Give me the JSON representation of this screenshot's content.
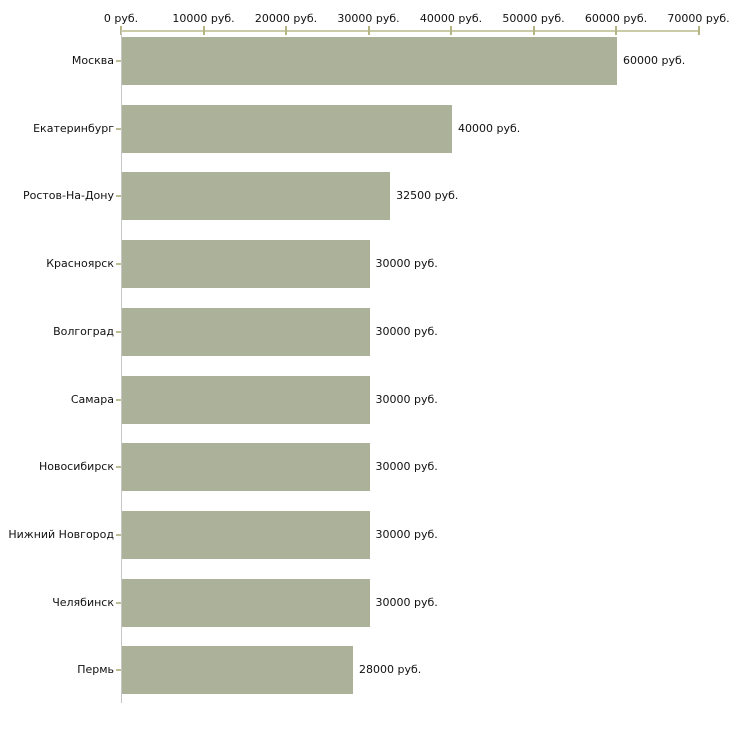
{
  "chart_data": {
    "type": "bar",
    "orientation": "horizontal",
    "title": "",
    "xlabel": "",
    "ylabel": "",
    "xlim": [
      0,
      70000
    ],
    "grid": false,
    "legend": false,
    "x_tick_values": [
      0,
      10000,
      20000,
      30000,
      40000,
      50000,
      60000,
      70000
    ],
    "x_tick_labels": [
      "0 руб.",
      "10000 руб.",
      "20000 руб.",
      "30000 руб.",
      "40000 руб.",
      "50000 руб.",
      "60000 руб.",
      "70000 руб."
    ],
    "categories": [
      "Москва",
      "Екатеринбург",
      "Ростов-На-Дону",
      "Красноярск",
      "Волгоград",
      "Самара",
      "Новосибирск",
      "Нижний Новгород",
      "Челябинск",
      "Пермь"
    ],
    "values": [
      60000,
      40000,
      32500,
      30000,
      30000,
      30000,
      30000,
      30000,
      30000,
      28000
    ],
    "value_labels": [
      "60000 руб.",
      "40000 руб.",
      "32500 руб.",
      "30000 руб.",
      "30000 руб.",
      "30000 руб.",
      "30000 руб.",
      "30000 руб.",
      "30000 руб.",
      "28000 руб."
    ],
    "colors": {
      "bar_fill": "#acb29a",
      "axis_line": "#cbcba8",
      "axis_tick": "#b5b584",
      "left_axis_line": "#c6c6c6",
      "text": "#111111",
      "background": "#ffffff"
    }
  }
}
